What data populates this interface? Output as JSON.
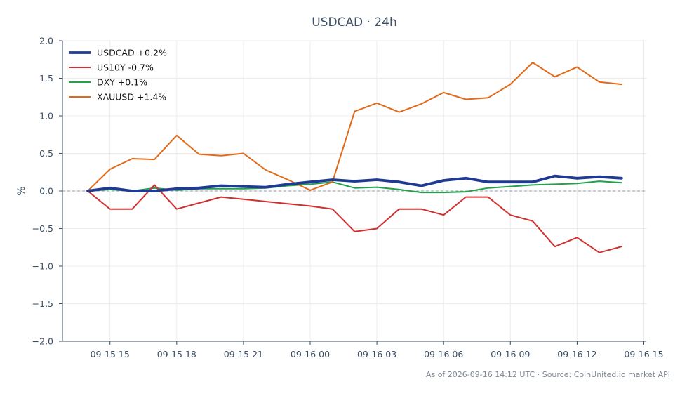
{
  "chart_data": {
    "type": "line",
    "title": "USDCAD · 24h",
    "xlabel": "",
    "ylabel": "%",
    "ylim": [
      -2.0,
      2.0
    ],
    "y_ticks": [
      "2.0",
      "1.5",
      "1.0",
      "0.5",
      "0.0",
      "−0.5",
      "−1.0",
      "−1.5",
      "−2.0"
    ],
    "y_tick_values": [
      2.0,
      1.5,
      1.0,
      0.5,
      0.0,
      -0.5,
      -1.0,
      -1.5,
      -2.0
    ],
    "x_ticks": [
      "09-15 15",
      "09-15 18",
      "09-15 21",
      "09-16 00",
      "09-16 03",
      "09-16 06",
      "09-16 09",
      "09-16 12",
      "09-16 15"
    ],
    "grid": true,
    "legend_position": "top-left",
    "zero_line": true,
    "x": [
      "09-15 14",
      "09-15 15",
      "09-15 16",
      "09-15 17",
      "09-15 18",
      "09-15 19",
      "09-15 20",
      "09-15 21",
      "09-15 22",
      "09-15 23",
      "09-16 00",
      "09-16 01",
      "09-16 02",
      "09-16 03",
      "09-16 04",
      "09-16 05",
      "09-16 06",
      "09-16 07",
      "09-16 08",
      "09-16 09",
      "09-16 10",
      "09-16 11",
      "09-16 12",
      "09-16 13",
      "09-16 14"
    ],
    "series": [
      {
        "name": "USDCAD +0.2%",
        "color": "#1f3a93",
        "values": [
          0.0,
          0.04,
          0.0,
          0.0,
          0.03,
          0.04,
          0.07,
          0.06,
          0.05,
          0.09,
          0.12,
          0.15,
          0.13,
          0.15,
          0.12,
          0.07,
          0.14,
          0.17,
          0.12,
          0.12,
          0.12,
          0.2,
          0.17,
          0.19,
          0.17
        ]
      },
      {
        "name": "US10Y -0.7%",
        "color": "#d03030",
        "values": [
          0.0,
          -0.24,
          -0.24,
          0.08,
          -0.24,
          -0.16,
          -0.08,
          -0.11,
          -0.14,
          -0.17,
          -0.2,
          -0.24,
          -0.54,
          -0.5,
          -0.24,
          -0.24,
          -0.32,
          -0.08,
          -0.08,
          -0.32,
          -0.4,
          -0.74,
          -0.62,
          -0.82,
          -0.74
        ]
      },
      {
        "name": "DXY +0.1%",
        "color": "#22a04a",
        "values": [
          0.0,
          0.02,
          0.0,
          0.04,
          0.01,
          0.03,
          0.03,
          0.03,
          0.04,
          0.07,
          0.09,
          0.12,
          0.04,
          0.05,
          0.02,
          -0.02,
          -0.02,
          -0.01,
          0.04,
          0.06,
          0.08,
          0.09,
          0.1,
          0.13,
          0.11
        ]
      },
      {
        "name": "XAUUSD +1.4%",
        "color": "#e06a1a",
        "values": [
          0.0,
          0.29,
          0.43,
          0.42,
          0.74,
          0.49,
          0.47,
          0.5,
          0.28,
          0.15,
          0.01,
          0.12,
          1.06,
          1.17,
          1.05,
          1.16,
          1.31,
          1.22,
          1.24,
          1.42,
          1.71,
          1.52,
          1.65,
          1.45,
          1.42
        ]
      }
    ],
    "footer": "As of 2026-09-16 14:12 UTC · Source: CoinUnited.io market API"
  }
}
